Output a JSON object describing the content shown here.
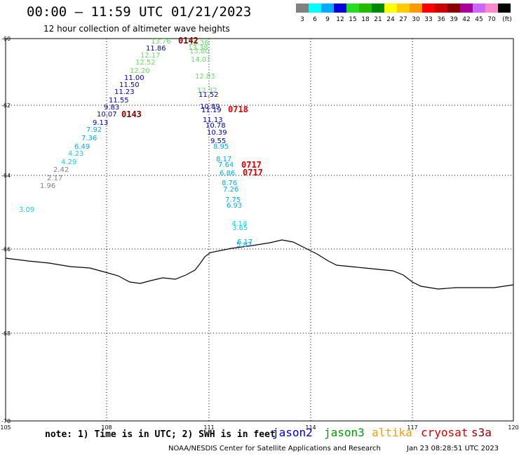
{
  "header": {
    "title": "00:00 – 11:59 UTC 01/21/2023",
    "subtitle": "12 hour collection of altimeter wave heights"
  },
  "legend": {
    "colors": [
      "#808080",
      "#00ffff",
      "#00aaff",
      "#0000dd",
      "#22dd22",
      "#22bb00",
      "#008800",
      "#ffff00",
      "#ffcc00",
      "#ff9900",
      "#ff0000",
      "#cc0000",
      "#880000",
      "#aa0099",
      "#cc66ff",
      "#ff88cc",
      "#000000"
    ],
    "labels": [
      "3",
      "6",
      "9",
      "12",
      "15",
      "18",
      "21",
      "24",
      "27",
      "30",
      "33",
      "36",
      "39",
      "42",
      "45",
      "70",
      "(ft)"
    ]
  },
  "axes": {
    "lat_labels": [
      "-60",
      "-62",
      "-64",
      "-66",
      "-68",
      "-70"
    ],
    "lon_labels": [
      "105",
      "108",
      "111",
      "114",
      "117",
      "120"
    ]
  },
  "tracks": [
    {
      "items": [
        {
          "t": "13.76",
          "c": "#66dd66"
        },
        {
          "t": "11.86",
          "c": "#0000aa"
        },
        {
          "t": "12.17",
          "c": "#66dd66"
        },
        {
          "t": "12.52",
          "c": "#66dd66"
        },
        {
          "t": "12.20",
          "c": "#66dd66"
        },
        {
          "t": "11.00",
          "c": "#0000aa"
        },
        {
          "t": "11.50",
          "c": "#0000aa"
        },
        {
          "t": "11.23",
          "c": "#0000aa"
        },
        {
          "t": "11.55",
          "c": "#0000aa"
        },
        {
          "t": "9.83",
          "c": "#0000aa"
        },
        {
          "t": "10.07",
          "c": "#0000aa"
        },
        {
          "t": "9.13",
          "c": "#0000aa"
        },
        {
          "t": "7.92",
          "c": "#00aaff"
        },
        {
          "t": "7.36",
          "c": "#00aaff"
        },
        {
          "t": "6.49",
          "c": "#00aaff"
        },
        {
          "t": "4.23",
          "c": "#00dddd"
        },
        {
          "t": "4.29",
          "c": "#00dddd"
        },
        {
          "t": "2.42",
          "c": "#808080"
        },
        {
          "t": "2.17",
          "c": "#808080"
        },
        {
          "t": "1.96",
          "c": "#808080"
        },
        {
          "t": "3.09",
          "c": "#00dddd"
        }
      ]
    },
    {
      "items": [
        {
          "t": "13.36",
          "c": "#66dd66"
        },
        {
          "t": "13.38",
          "c": "#66dd66"
        },
        {
          "t": "13.80",
          "c": "#66dd66"
        },
        {
          "t": "14.01",
          "c": "#66dd66"
        },
        {
          "t": "12.03",
          "c": "#66dd66"
        },
        {
          "t": "12.32",
          "c": "#66dd66"
        },
        {
          "t": "11.52",
          "c": "#0000aa"
        },
        {
          "t": "10.89",
          "c": "#0000aa"
        },
        {
          "t": "11.19",
          "c": "#0000aa"
        },
        {
          "t": "11.13",
          "c": "#0000aa"
        },
        {
          "t": "10.78",
          "c": "#0000aa"
        },
        {
          "t": "10.39",
          "c": "#0000aa"
        },
        {
          "t": "9.55",
          "c": "#0000aa"
        },
        {
          "t": "8.95",
          "c": "#00aaff"
        },
        {
          "t": "8.17",
          "c": "#00aaff"
        },
        {
          "t": "7.64",
          "c": "#00aaff"
        },
        {
          "t": "6.86",
          "c": "#00aaff"
        },
        {
          "t": "8.76",
          "c": "#00aaff"
        },
        {
          "t": "7.26",
          "c": "#00aaff"
        },
        {
          "t": "7.75",
          "c": "#00aaff"
        },
        {
          "t": "6.93",
          "c": "#00aaff"
        },
        {
          "t": "4.14",
          "c": "#00dddd"
        },
        {
          "t": "3.65",
          "c": "#00dddd"
        },
        {
          "t": "6.17",
          "c": "#00aaff"
        },
        {
          "t": "5.87",
          "c": "#00aaff"
        }
      ]
    }
  ],
  "times": [
    {
      "t": "0142",
      "c": "#880000"
    },
    {
      "t": "0143",
      "c": "#880000"
    },
    {
      "t": "0718",
      "c": "#dd0000"
    },
    {
      "t": "0717",
      "c": "#dd0000"
    },
    {
      "t": "0717",
      "c": "#dd0000"
    }
  ],
  "footer": {
    "note": "note: 1) Time is in UTC; 2) SWH is in feet",
    "sats": [
      {
        "t": "jason2",
        "c": "#0000cc"
      },
      {
        "t": "jason3",
        "c": "#009900"
      },
      {
        "t": "altika",
        "c": "#ff9900"
      },
      {
        "t": "cryosat",
        "c": "#dd0000"
      },
      {
        "t": "s3a",
        "c": "#880000"
      }
    ],
    "credit": "NOAA/NESDIS Center for Satellite Applications and Research",
    "stamp": "Jan 23 08:28:51 UTC 2023"
  }
}
